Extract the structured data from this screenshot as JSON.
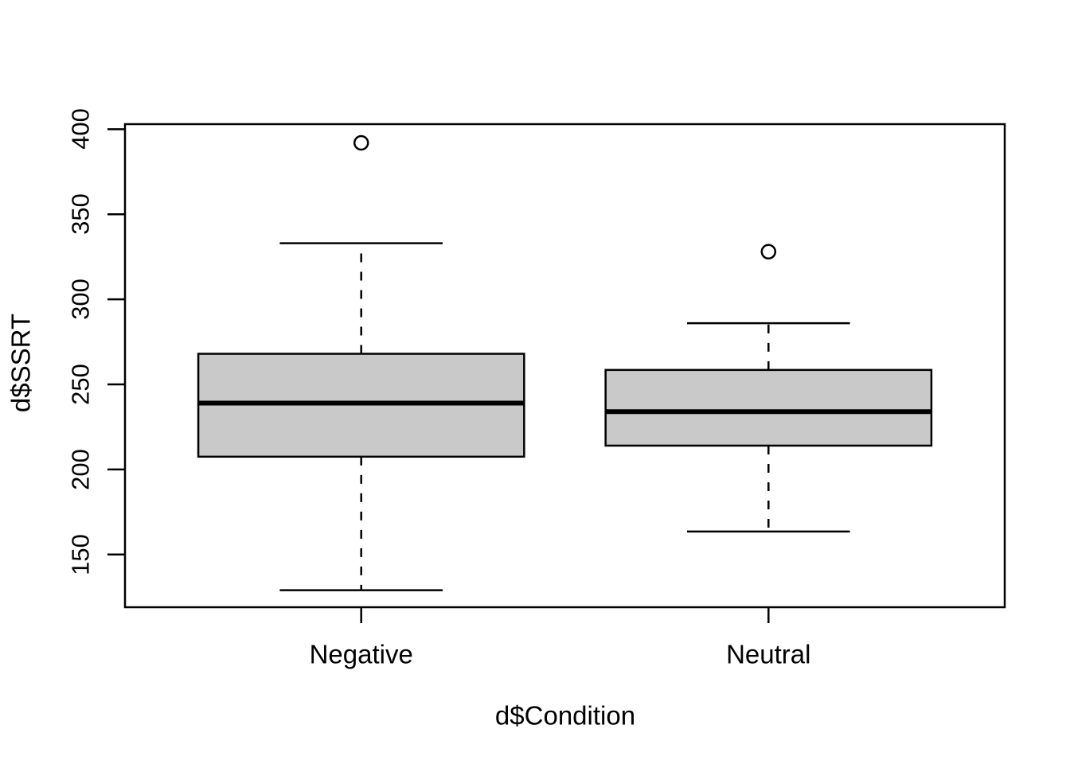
{
  "chart_data": {
    "type": "boxplot",
    "title": "",
    "xlabel": "d$Condition",
    "ylabel": "d$SSRT",
    "categories": [
      "Negative",
      "Neutral"
    ],
    "y_ticks": [
      150,
      200,
      250,
      300,
      350,
      400
    ],
    "ylim": [
      119,
      403
    ],
    "xlim": [
      0.42,
      2.58
    ],
    "grid": false,
    "legend": false,
    "box_width_units": 0.8,
    "staple_width_units": 0.4,
    "box_fill_color": "#c9c9c9",
    "line_color": "#000000",
    "series": [
      {
        "name": "Negative",
        "position": 1,
        "lower_whisker": 129,
        "q1": 207.5,
        "median": 239,
        "q3": 268,
        "upper_whisker": 333,
        "outliers": [
          392
        ]
      },
      {
        "name": "Neutral",
        "position": 2,
        "lower_whisker": 163.5,
        "q1": 214,
        "median": 234,
        "q3": 258.5,
        "upper_whisker": 286,
        "outliers": [
          328
        ]
      }
    ]
  }
}
